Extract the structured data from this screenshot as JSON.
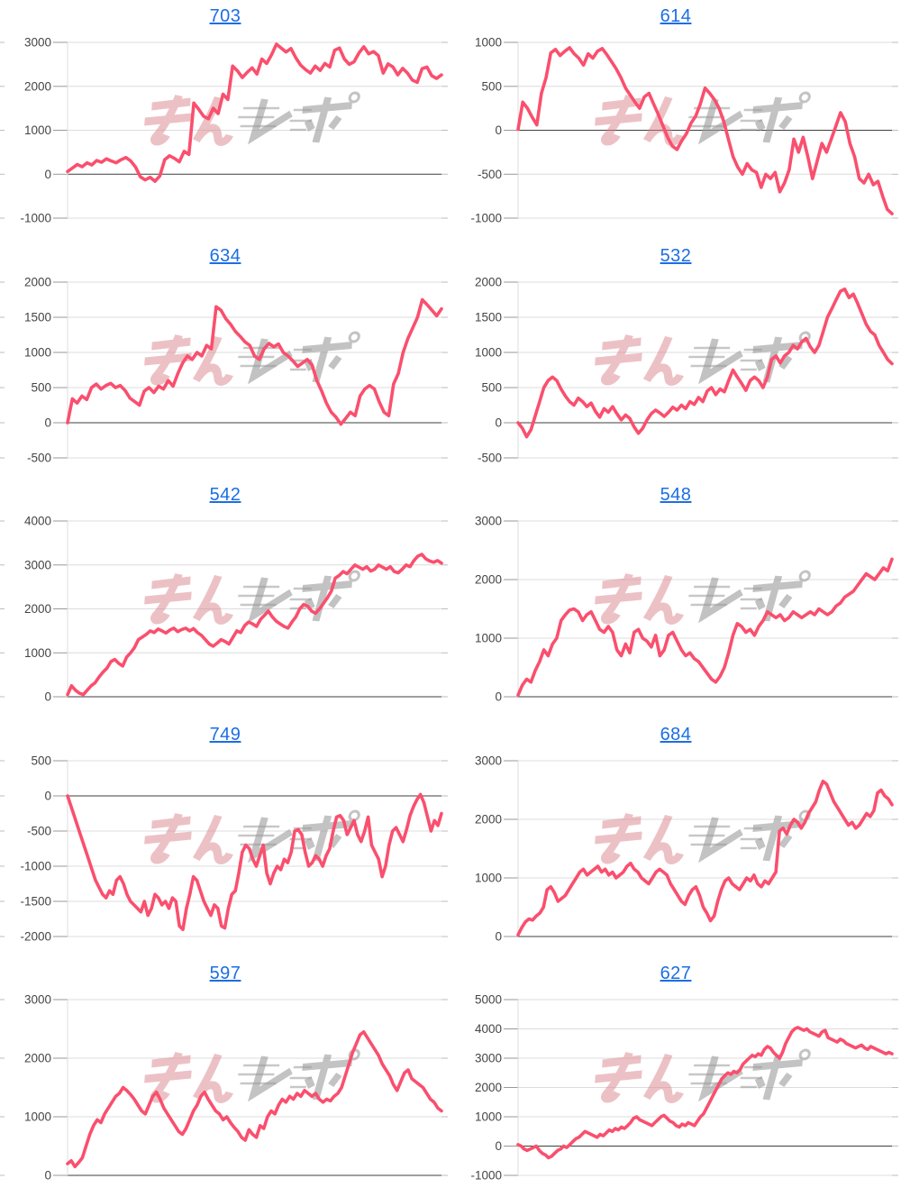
{
  "page": {
    "background": "#ffffff",
    "columns": 2,
    "rows": 5
  },
  "style": {
    "line_color": "#fa4f6e",
    "grid_color": "#dcdcdc",
    "baseline_color": "#3f3f3f",
    "tick_label_color": "#454545",
    "tick_stub_color": "#999999",
    "title_link_color": "#1b6ee3",
    "watermark_pink": "#d9848c",
    "watermark_gray": "#9b9b9b"
  },
  "watermark": {
    "text": "みんレポ",
    "pink_part": "みん",
    "gray_part": "レポ"
  },
  "chart_data": [
    {
      "type": "line",
      "title": "703",
      "title_is_link": true,
      "ylim": [
        -1000,
        3000
      ],
      "yticks": [
        3000,
        2000,
        1000,
        0,
        -1000
      ],
      "xlabel": "",
      "ylabel": "",
      "grid": true,
      "legend": "none",
      "values": [
        60,
        140,
        220,
        170,
        260,
        210,
        310,
        270,
        350,
        300,
        260,
        330,
        380,
        300,
        160,
        -60,
        -130,
        -70,
        -160,
        -40,
        330,
        420,
        360,
        280,
        520,
        450,
        1620,
        1480,
        1320,
        1260,
        1500,
        1380,
        1820,
        1700,
        2460,
        2350,
        2200,
        2320,
        2420,
        2280,
        2620,
        2520,
        2720,
        2960,
        2870,
        2780,
        2860,
        2650,
        2480,
        2380,
        2300,
        2460,
        2360,
        2520,
        2440,
        2820,
        2870,
        2620,
        2500,
        2560,
        2760,
        2900,
        2740,
        2790,
        2700,
        2300,
        2510,
        2440,
        2260,
        2410,
        2300,
        2140,
        2090,
        2400,
        2440,
        2240,
        2180,
        2260
      ]
    },
    {
      "type": "line",
      "title": "614",
      "title_is_link": true,
      "ylim": [
        -1000,
        1000
      ],
      "yticks": [
        1000,
        500,
        0,
        -500,
        -1000
      ],
      "xlabel": "",
      "ylabel": "",
      "grid": true,
      "legend": "none",
      "values": [
        10,
        320,
        250,
        150,
        60,
        420,
        600,
        880,
        920,
        850,
        900,
        940,
        870,
        820,
        740,
        870,
        820,
        900,
        930,
        860,
        780,
        700,
        600,
        480,
        400,
        320,
        250,
        380,
        420,
        300,
        180,
        50,
        -80,
        -180,
        -220,
        -120,
        -40,
        80,
        160,
        300,
        480,
        420,
        350,
        250,
        100,
        -100,
        -300,
        -420,
        -500,
        -380,
        -450,
        -480,
        -650,
        -500,
        -550,
        -480,
        -700,
        -600,
        -450,
        -100,
        -250,
        -80,
        -300,
        -550,
        -350,
        -150,
        -250,
        -100,
        50,
        200,
        100,
        -150,
        -300,
        -550,
        -600,
        -500,
        -620,
        -580,
        -750,
        -900,
        -950
      ]
    },
    {
      "type": "line",
      "title": "634",
      "title_is_link": true,
      "ylim": [
        -500,
        2000
      ],
      "yticks": [
        2000,
        1500,
        1000,
        500,
        0,
        -500
      ],
      "xlabel": "",
      "ylabel": "",
      "grid": true,
      "legend": "none",
      "values": [
        0,
        340,
        280,
        380,
        330,
        500,
        550,
        480,
        530,
        560,
        500,
        530,
        460,
        350,
        300,
        250,
        450,
        500,
        430,
        520,
        480,
        600,
        520,
        700,
        850,
        950,
        900,
        1000,
        950,
        1100,
        1050,
        1650,
        1600,
        1480,
        1400,
        1300,
        1230,
        1150,
        1100,
        950,
        900,
        1050,
        1130,
        1080,
        1120,
        1000,
        950,
        880,
        800,
        850,
        900,
        820,
        600,
        450,
        280,
        150,
        80,
        -20,
        60,
        150,
        100,
        380,
        480,
        530,
        480,
        300,
        150,
        100,
        550,
        700,
        1000,
        1200,
        1350,
        1500,
        1750,
        1680,
        1600,
        1520,
        1620
      ]
    },
    {
      "type": "line",
      "title": "532",
      "title_is_link": true,
      "ylim": [
        -500,
        2000
      ],
      "yticks": [
        2000,
        1500,
        1000,
        500,
        0,
        -500
      ],
      "xlabel": "",
      "ylabel": "",
      "grid": true,
      "legend": "none",
      "values": [
        0,
        -80,
        -200,
        -100,
        100,
        300,
        500,
        600,
        650,
        600,
        480,
        380,
        300,
        250,
        350,
        300,
        230,
        280,
        160,
        80,
        200,
        150,
        230,
        130,
        40,
        110,
        60,
        -60,
        -150,
        -80,
        40,
        130,
        180,
        140,
        90,
        150,
        220,
        180,
        250,
        200,
        300,
        260,
        360,
        300,
        450,
        500,
        400,
        480,
        440,
        600,
        750,
        650,
        560,
        460,
        600,
        650,
        600,
        500,
        650,
        900,
        950,
        850,
        950,
        1000,
        1100,
        1050,
        1150,
        1200,
        1080,
        1000,
        1100,
        1300,
        1500,
        1620,
        1750,
        1870,
        1900,
        1780,
        1830,
        1700,
        1550,
        1400,
        1300,
        1250,
        1100,
        1000,
        900,
        840
      ]
    },
    {
      "type": "line",
      "title": "542",
      "title_is_link": true,
      "ylim": [
        0,
        4000
      ],
      "yticks": [
        4000,
        3000,
        2000,
        1000,
        0
      ],
      "xlabel": "",
      "ylabel": "",
      "grid": true,
      "legend": "none",
      "values": [
        50,
        250,
        150,
        80,
        50,
        150,
        250,
        320,
        450,
        560,
        650,
        800,
        850,
        760,
        700,
        900,
        1000,
        1120,
        1300,
        1360,
        1420,
        1500,
        1460,
        1540,
        1500,
        1450,
        1520,
        1560,
        1480,
        1530,
        1560,
        1500,
        1550,
        1460,
        1400,
        1300,
        1200,
        1150,
        1220,
        1300,
        1260,
        1200,
        1350,
        1500,
        1460,
        1620,
        1700,
        1660,
        1600,
        1760,
        1850,
        1950,
        1820,
        1720,
        1660,
        1600,
        1560,
        1700,
        1820,
        2000,
        2100,
        2060,
        1950,
        1900,
        2000,
        2120,
        2250,
        2400,
        2700,
        2760,
        2850,
        2800,
        2900,
        3000,
        2950,
        2900,
        2960,
        2860,
        2900,
        3000,
        2950,
        2900,
        2960,
        2850,
        2820,
        2900,
        3000,
        2960,
        3100,
        3200,
        3240,
        3140,
        3090,
        3060,
        3100,
        3040
      ]
    },
    {
      "type": "line",
      "title": "548",
      "title_is_link": true,
      "ylim": [
        0,
        3000
      ],
      "yticks": [
        3000,
        2000,
        1000,
        0
      ],
      "xlabel": "",
      "ylabel": "",
      "grid": true,
      "legend": "none",
      "values": [
        30,
        200,
        300,
        250,
        450,
        600,
        800,
        700,
        900,
        1000,
        1300,
        1400,
        1480,
        1500,
        1450,
        1300,
        1400,
        1450,
        1300,
        1150,
        1100,
        1200,
        1100,
        800,
        700,
        900,
        750,
        1100,
        1150,
        1000,
        950,
        850,
        1050,
        700,
        800,
        1050,
        1100,
        950,
        800,
        700,
        750,
        650,
        600,
        500,
        400,
        300,
        250,
        350,
        500,
        750,
        1050,
        1250,
        1200,
        1100,
        1150,
        1050,
        1200,
        1300,
        1450,
        1400,
        1350,
        1400,
        1300,
        1350,
        1450,
        1400,
        1350,
        1400,
        1450,
        1400,
        1500,
        1450,
        1400,
        1450,
        1550,
        1600,
        1700,
        1750,
        1800,
        1900,
        2000,
        2100,
        2050,
        2000,
        2100,
        2200,
        2150,
        2350
      ]
    },
    {
      "type": "line",
      "title": "749",
      "title_is_link": true,
      "ylim": [
        -2000,
        500
      ],
      "yticks": [
        500,
        0,
        -500,
        -1000,
        -1500,
        -2000
      ],
      "xlabel": "",
      "ylabel": "",
      "grid": true,
      "legend": "none",
      "values": [
        0,
        -150,
        -300,
        -450,
        -600,
        -750,
        -900,
        -1050,
        -1200,
        -1300,
        -1400,
        -1450,
        -1350,
        -1400,
        -1200,
        -1150,
        -1250,
        -1400,
        -1500,
        -1550,
        -1600,
        -1650,
        -1500,
        -1700,
        -1600,
        -1400,
        -1450,
        -1550,
        -1500,
        -1600,
        -1450,
        -1500,
        -1850,
        -1900,
        -1600,
        -1400,
        -1150,
        -1200,
        -1350,
        -1500,
        -1600,
        -1700,
        -1550,
        -1600,
        -1850,
        -1880,
        -1600,
        -1400,
        -1350,
        -1100,
        -800,
        -700,
        -750,
        -900,
        -1000,
        -850,
        -700,
        -1100,
        -1250,
        -1100,
        -1000,
        -1050,
        -900,
        -950,
        -800,
        -500,
        -480,
        -550,
        -800,
        -1000,
        -950,
        -850,
        -900,
        -1000,
        -850,
        -750,
        -500,
        -300,
        -280,
        -350,
        -550,
        -450,
        -350,
        -550,
        -650,
        -500,
        -300,
        -700,
        -800,
        -900,
        -1150,
        -1000,
        -700,
        -500,
        -450,
        -550,
        -650,
        -480,
        -280,
        -150,
        -50,
        20,
        -100,
        -300,
        -500,
        -350,
        -420,
        -250
      ]
    },
    {
      "type": "line",
      "title": "684",
      "title_is_link": true,
      "ylim": [
        0,
        3000
      ],
      "yticks": [
        3000,
        2000,
        1000,
        0
      ],
      "xlabel": "",
      "ylabel": "",
      "grid": true,
      "legend": "none",
      "values": [
        30,
        150,
        250,
        300,
        280,
        350,
        400,
        500,
        800,
        850,
        750,
        600,
        650,
        700,
        800,
        900,
        1000,
        1100,
        1150,
        1050,
        1100,
        1150,
        1200,
        1100,
        1150,
        1050,
        1100,
        1000,
        1050,
        1100,
        1200,
        1250,
        1150,
        1100,
        1000,
        950,
        900,
        1000,
        1100,
        1150,
        1100,
        1050,
        900,
        800,
        700,
        600,
        550,
        700,
        800,
        850,
        700,
        500,
        400,
        270,
        350,
        600,
        800,
        950,
        1000,
        900,
        850,
        800,
        900,
        1000,
        950,
        1050,
        900,
        850,
        950,
        900,
        1000,
        1100,
        1800,
        1850,
        1750,
        1900,
        2000,
        1950,
        1850,
        1950,
        2100,
        2200,
        2300,
        2500,
        2650,
        2600,
        2450,
        2300,
        2200,
        2100,
        2000,
        1900,
        1950,
        1850,
        1900,
        2000,
        2100,
        2050,
        2150,
        2450,
        2500,
        2400,
        2350,
        2250
      ]
    },
    {
      "type": "line",
      "title": "597",
      "title_is_link": true,
      "ylim": [
        0,
        3000
      ],
      "yticks": [
        3000,
        2000,
        1000,
        0
      ],
      "xlabel": "",
      "ylabel": "",
      "grid": true,
      "legend": "none",
      "values": [
        200,
        250,
        150,
        220,
        300,
        500,
        700,
        850,
        950,
        900,
        1050,
        1150,
        1250,
        1350,
        1400,
        1500,
        1450,
        1380,
        1300,
        1200,
        1100,
        1050,
        1200,
        1350,
        1420,
        1300,
        1150,
        1050,
        950,
        850,
        750,
        700,
        800,
        950,
        1100,
        1200,
        1350,
        1420,
        1300,
        1200,
        1100,
        1050,
        950,
        1000,
        900,
        820,
        750,
        650,
        600,
        780,
        700,
        650,
        850,
        800,
        1000,
        1100,
        1050,
        1200,
        1300,
        1250,
        1350,
        1300,
        1400,
        1350,
        1450,
        1400,
        1350,
        1400,
        1300,
        1250,
        1300,
        1270,
        1350,
        1400,
        1500,
        1700,
        1900,
        2100,
        2250,
        2400,
        2450,
        2350,
        2250,
        2150,
        2050,
        1900,
        1800,
        1700,
        1550,
        1450,
        1600,
        1750,
        1800,
        1650,
        1600,
        1550,
        1500,
        1400,
        1300,
        1250,
        1150,
        1100
      ]
    },
    {
      "type": "line",
      "title": "627",
      "title_is_link": true,
      "ylim": [
        -1000,
        5000
      ],
      "yticks": [
        5000,
        4000,
        3000,
        2000,
        1000,
        0,
        -1000
      ],
      "xlabel": "",
      "ylabel": "",
      "grid": true,
      "legend": "none",
      "values": [
        50,
        0,
        -100,
        -150,
        -100,
        -50,
        0,
        -150,
        -250,
        -300,
        -400,
        -350,
        -250,
        -150,
        -100,
        0,
        -50,
        50,
        150,
        250,
        300,
        400,
        500,
        450,
        400,
        350,
        300,
        400,
        350,
        450,
        550,
        500,
        600,
        550,
        650,
        600,
        700,
        800,
        950,
        1000,
        900,
        850,
        800,
        750,
        700,
        800,
        900,
        1000,
        1050,
        950,
        850,
        800,
        700,
        650,
        750,
        700,
        800,
        750,
        700,
        850,
        1000,
        1100,
        1300,
        1500,
        1700,
        1900,
        2100,
        2300,
        2400,
        2500,
        2450,
        2550,
        2500,
        2600,
        2800,
        2900,
        3000,
        3100,
        3050,
        3150,
        3100,
        3300,
        3400,
        3350,
        3200,
        3100,
        3000,
        3200,
        3500,
        3700,
        3900,
        4000,
        4050,
        4000,
        3950,
        4000,
        3900,
        3850,
        3800,
        3750,
        3900,
        3950,
        3700,
        3650,
        3600,
        3550,
        3650,
        3600,
        3500,
        3450,
        3400,
        3350,
        3400,
        3450,
        3350,
        3300,
        3400,
        3350,
        3300,
        3250,
        3200,
        3150,
        3200,
        3150
      ]
    }
  ]
}
